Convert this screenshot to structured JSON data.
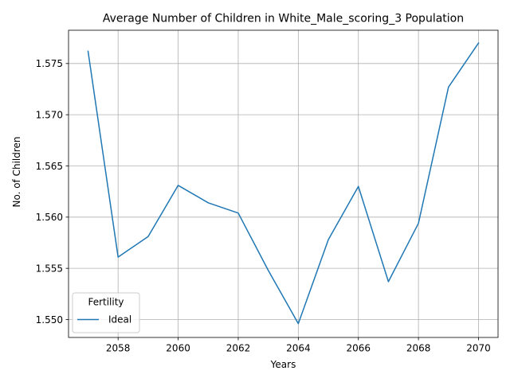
{
  "chart_data": {
    "type": "line",
    "title": "Average Number of Children in White_Male_scoring_3 Population",
    "xlabel": "Years",
    "ylabel": "No. of Children",
    "xlim": [
      2056.35,
      2070.65
    ],
    "ylim": [
      1.54825,
      1.57825
    ],
    "xticks": [
      2058,
      2060,
      2062,
      2064,
      2066,
      2068,
      2070
    ],
    "xtick_labels": [
      "2058",
      "2060",
      "2062",
      "2064",
      "2066",
      "2068",
      "2070"
    ],
    "yticks": [
      1.55,
      1.555,
      1.56,
      1.565,
      1.57,
      1.575
    ],
    "ytick_labels": [
      "1.550",
      "1.555",
      "1.560",
      "1.565",
      "1.570",
      "1.575"
    ],
    "grid": true,
    "legend": {
      "title": "Fertility",
      "placement": "lower-left"
    },
    "x": [
      2057,
      2058,
      2059,
      2060,
      2061,
      2062,
      2063,
      2064,
      2065,
      2066,
      2067,
      2068,
      2069,
      2070
    ],
    "series": [
      {
        "name": "Ideal",
        "color": "#1f77b4",
        "values": [
          1.5762,
          1.5561,
          1.5581,
          1.5631,
          1.5614,
          1.5604,
          1.5548,
          1.5496,
          1.5578,
          1.563,
          1.5537,
          1.5594,
          1.5727,
          1.577
        ]
      }
    ]
  }
}
